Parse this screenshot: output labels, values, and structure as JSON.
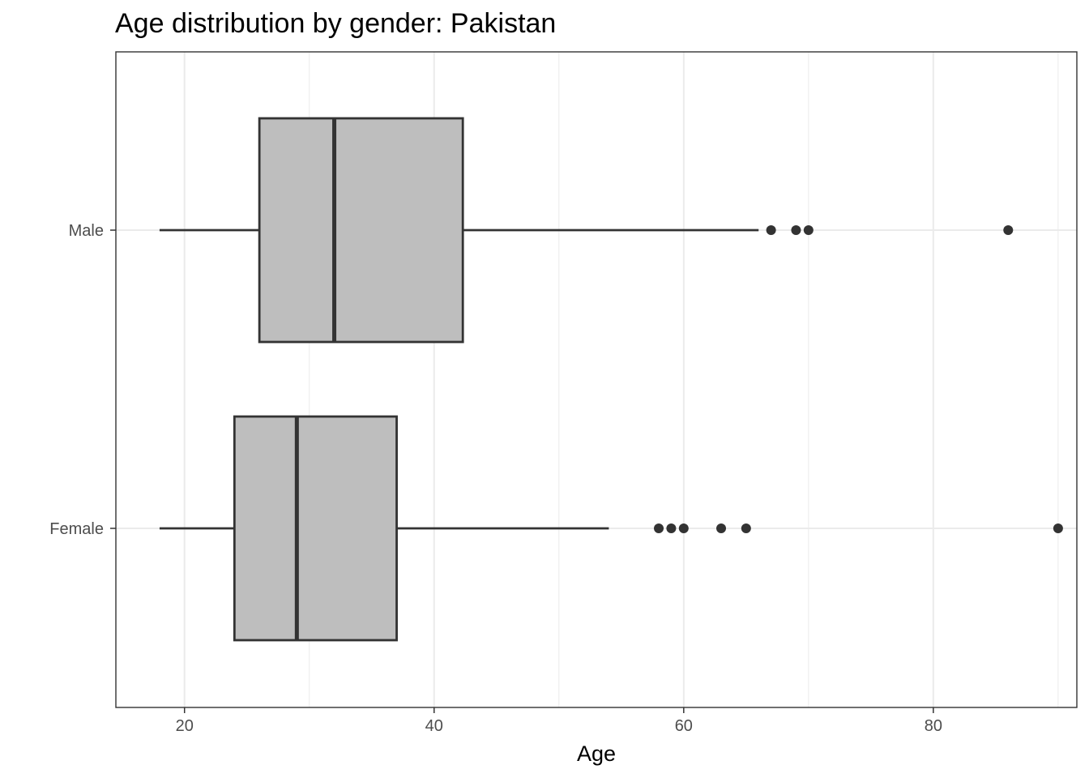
{
  "chart_data": {
    "type": "boxplot",
    "orientation": "horizontal",
    "title": "Age distribution by gender: Pakistan",
    "xlabel": "Age",
    "ylabel": "",
    "xlim": [
      14.5,
      91.5
    ],
    "x_ticks": [
      20,
      40,
      60,
      80
    ],
    "x_tick_labels": [
      "20",
      "40",
      "60",
      "80"
    ],
    "categories": [
      "Male",
      "Female"
    ],
    "grid": true,
    "legend": "none",
    "box_fill": "#bebebe",
    "box_stroke": "#333333",
    "grid_color": "#ebebeb",
    "series": [
      {
        "category": "Male",
        "whisker_low": 18,
        "q1": 26,
        "median": 32,
        "q3": 42.3,
        "whisker_high": 66,
        "outliers": [
          67,
          69,
          70,
          86
        ]
      },
      {
        "category": "Female",
        "whisker_low": 18,
        "q1": 24,
        "median": 29,
        "q3": 37,
        "whisker_high": 54,
        "outliers": [
          58,
          59,
          60,
          63,
          65,
          90
        ]
      }
    ]
  }
}
